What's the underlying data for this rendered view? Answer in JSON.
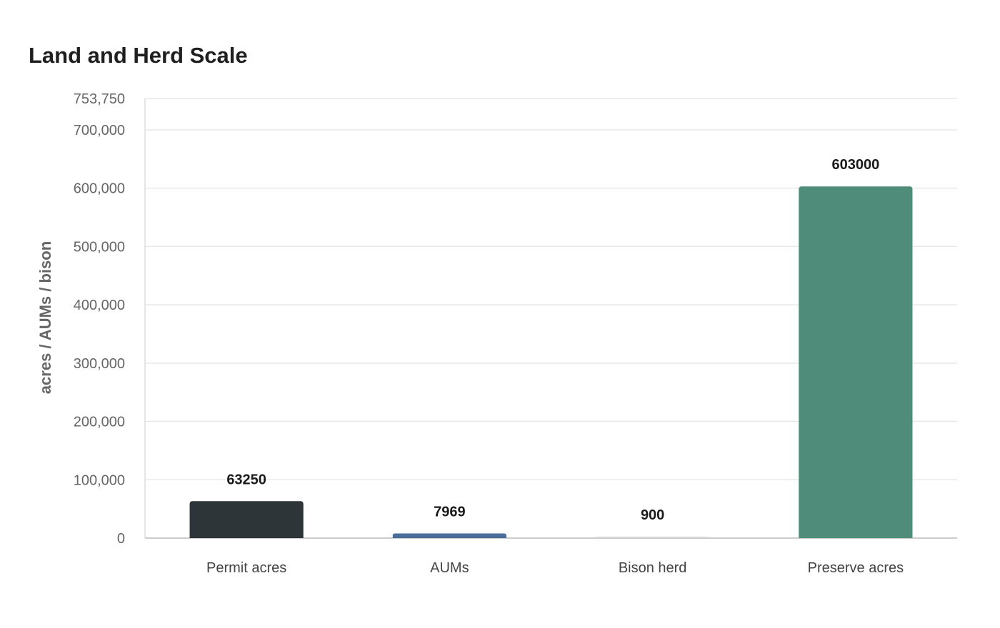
{
  "chart_data": {
    "type": "bar",
    "title": "Land and Herd Scale",
    "xlabel": "",
    "ylabel": "acres / AUMs / bison",
    "categories": [
      "Permit acres",
      "AUMs",
      "Bison herd",
      "Preserve acres"
    ],
    "values": [
      63250,
      7969,
      900,
      603000
    ],
    "value_labels": [
      "63250",
      "7969",
      "900",
      "603000"
    ],
    "colors": [
      "#2e3538",
      "#4a6d99",
      "#d6d6d6",
      "#4f8c7a"
    ],
    "ylim": [
      0,
      753750
    ],
    "yticks": [
      0,
      100000,
      200000,
      300000,
      400000,
      500000,
      600000,
      700000,
      753750
    ],
    "ytick_labels": [
      "0",
      "100,000",
      "200,000",
      "300,000",
      "400,000",
      "500,000",
      "600,000",
      "700,000",
      "753,750"
    ],
    "grid": true,
    "legend": "none"
  }
}
